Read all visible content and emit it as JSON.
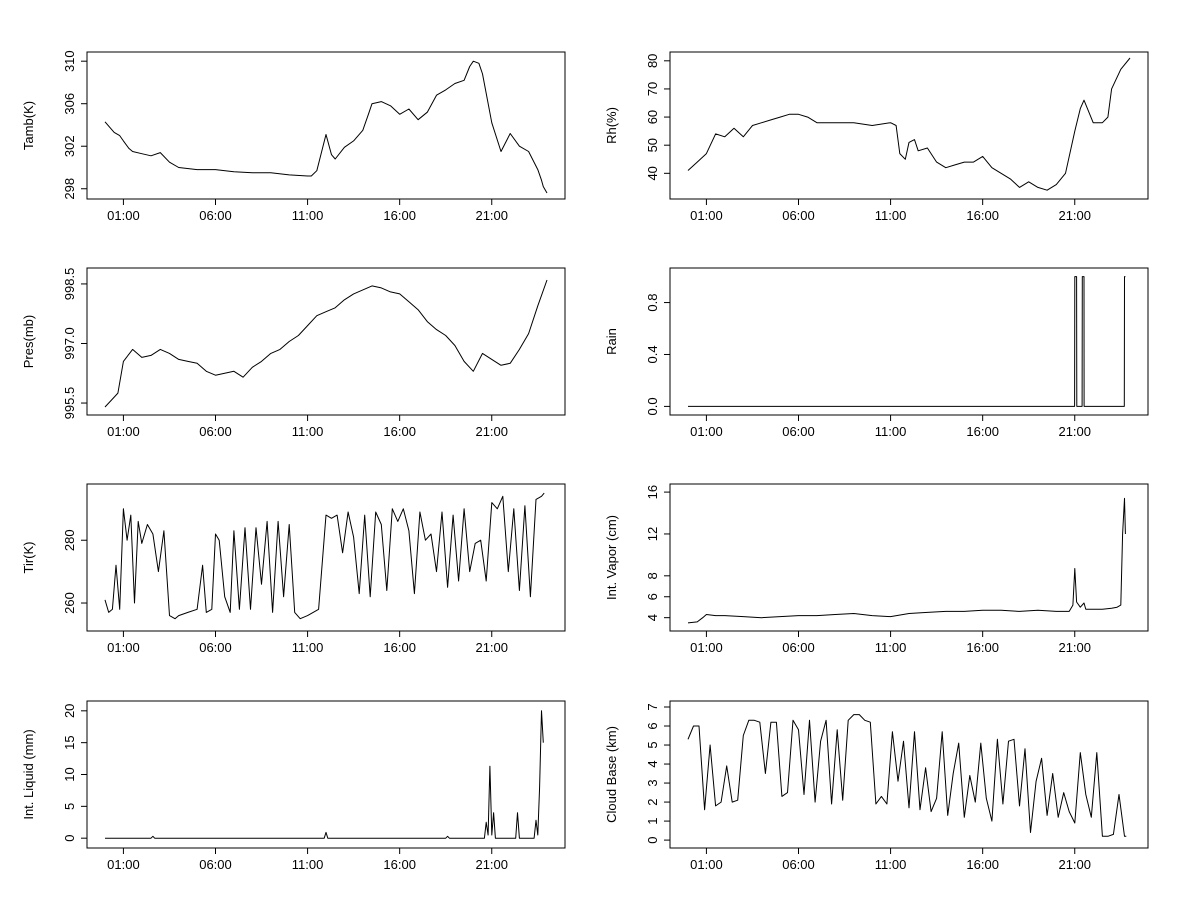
{
  "chart_data": [
    {
      "type": "line",
      "ylabel": "Tamb(K)",
      "xticks": [
        "01:00",
        "06:00",
        "11:00",
        "16:00",
        "21:00"
      ],
      "yticks": [
        298,
        302,
        306,
        310
      ],
      "ylim": [
        297.6,
        310.3
      ],
      "xlim": [
        0,
        24
      ],
      "grid": false,
      "series": [
        {
          "x": [
            0,
            0.3,
            0.5,
            0.8,
            1,
            1.3,
            1.5,
            2,
            2.5,
            3,
            3.5,
            4,
            5,
            6,
            7,
            8,
            9,
            10,
            11,
            11.2,
            11.5,
            12,
            12.3,
            12.5,
            13,
            13.5,
            14,
            14.3,
            14.5,
            15,
            15.5,
            16,
            16.5,
            17,
            17.5,
            18,
            18.5,
            19,
            19.5,
            19.8,
            20,
            20.3,
            20.5,
            21,
            21.5,
            22,
            22.5,
            23,
            23.5,
            23.7,
            23.8,
            24
          ],
          "y": [
            304.3,
            303.7,
            303.3,
            303.0,
            302.5,
            301.8,
            301.5,
            301.3,
            301.1,
            301.4,
            300.5,
            300.0,
            299.8,
            299.8,
            299.6,
            299.5,
            299.5,
            299.3,
            299.2,
            299.2,
            299.7,
            303.1,
            301.2,
            300.8,
            301.9,
            302.5,
            303.5,
            305.0,
            306.0,
            306.2,
            305.8,
            305.0,
            305.5,
            304.5,
            305.2,
            306.8,
            307.3,
            307.9,
            308.2,
            309.5,
            310.0,
            309.8,
            308.8,
            304.2,
            301.5,
            303.2,
            302.0,
            301.5,
            299.8,
            298.8,
            298.2,
            297.6
          ]
        }
      ]
    },
    {
      "type": "line",
      "ylabel": "Rh(%)",
      "xticks": [
        "01:00",
        "06:00",
        "11:00",
        "16:00",
        "21:00"
      ],
      "yticks": [
        40,
        50,
        60,
        70,
        80
      ],
      "ylim": [
        33,
        81
      ],
      "xlim": [
        0,
        24
      ],
      "grid": false,
      "series": [
        {
          "x": [
            0,
            0.5,
            1,
            1.5,
            2,
            2.5,
            3,
            3.5,
            4,
            4.5,
            5,
            5.5,
            6,
            6.5,
            7,
            8,
            9,
            10,
            11,
            11.3,
            11.5,
            11.8,
            12,
            12.3,
            12.5,
            13,
            13.5,
            14,
            14.5,
            15,
            15.5,
            16,
            16.5,
            17,
            17.5,
            18,
            18.5,
            19,
            19.5,
            20,
            20.5,
            21,
            21.3,
            21.5,
            22,
            22.5,
            22.8,
            23,
            23.5,
            24
          ],
          "y": [
            41,
            44,
            47,
            54,
            53,
            56,
            53,
            57,
            58,
            59,
            60,
            61,
            61,
            60,
            58,
            58,
            58,
            57,
            58,
            57,
            47,
            45,
            51,
            52,
            48,
            49,
            44,
            42,
            43,
            44,
            44,
            46,
            42,
            40,
            38,
            35,
            37,
            35,
            34,
            36,
            40,
            55,
            63,
            66,
            58,
            58,
            60,
            70,
            77,
            81
          ]
        }
      ]
    },
    {
      "type": "line",
      "ylabel": "Pres(mb)",
      "xticks": [
        "01:00",
        "06:00",
        "11:00",
        "16:00",
        "21:00"
      ],
      "yticks": [
        995.5,
        997.0,
        998.5
      ],
      "yticklabels": [
        "995.5",
        "997.0",
        "998.5"
      ],
      "ylim": [
        995.35,
        998.75
      ],
      "xlim": [
        0,
        24
      ],
      "grid": false,
      "series": [
        {
          "x": [
            0,
            0.3,
            0.7,
            1,
            1.5,
            2,
            2.5,
            3,
            3.5,
            4,
            4.5,
            5,
            5.5,
            6,
            6.5,
            7,
            7.5,
            8,
            8.5,
            9,
            9.5,
            10,
            10.5,
            11,
            11.5,
            12,
            12.5,
            13,
            13.5,
            14,
            14.5,
            15,
            15.5,
            16,
            16.5,
            17,
            17.5,
            18,
            18.5,
            19,
            19.5,
            20,
            20.5,
            21,
            21.5,
            22,
            22.5,
            23,
            23.5,
            24
          ],
          "y": [
            995.4,
            995.55,
            995.75,
            996.55,
            996.85,
            996.65,
            996.7,
            996.85,
            996.75,
            996.6,
            996.55,
            996.5,
            996.3,
            996.2,
            996.25,
            996.3,
            996.15,
            996.4,
            996.55,
            996.75,
            996.85,
            997.05,
            997.2,
            997.45,
            997.7,
            997.8,
            997.9,
            998.1,
            998.25,
            998.35,
            998.45,
            998.4,
            998.3,
            998.25,
            998.05,
            997.85,
            997.55,
            997.35,
            997.2,
            996.95,
            996.55,
            996.3,
            996.75,
            996.6,
            996.45,
            996.5,
            996.85,
            997.25,
            997.95,
            998.6
          ]
        }
      ]
    },
    {
      "type": "line",
      "ylabel": "Rain",
      "xticks": [
        "01:00",
        "06:00",
        "11:00",
        "16:00",
        "21:00"
      ],
      "yticks": [
        0.0,
        0.4,
        0.8
      ],
      "yticklabels": [
        "0.0",
        "0.4",
        "0.8"
      ],
      "ylim": [
        -0.02,
        1.02
      ],
      "xlim": [
        0,
        24
      ],
      "grid": false,
      "series": [
        {
          "x": [
            0,
            20.99,
            21,
            21.1,
            21.11,
            21.4,
            21.41,
            21.5,
            21.51,
            23.69,
            23.7,
            23.75
          ],
          "y": [
            0,
            0,
            1,
            1,
            0,
            0,
            1,
            1,
            0,
            0,
            1,
            1
          ]
        }
      ]
    },
    {
      "type": "line",
      "ylabel": "Int. Vapor (cm)",
      "xticks": [
        "01:00",
        "06:00",
        "11:00",
        "16:00",
        "21:00"
      ],
      "yticks": [
        4,
        6,
        8,
        12,
        16
      ],
      "ylim": [
        3.3,
        16.2
      ],
      "xlim": [
        0,
        24
      ],
      "grid": false,
      "series": [
        {
          "x": [
            0,
            0.5,
            0.8,
            1,
            1.5,
            2,
            3,
            4,
            5,
            6,
            7,
            8,
            9,
            10,
            11,
            12,
            13,
            14,
            15,
            16,
            17,
            18,
            19,
            20,
            20.7,
            20.9,
            21,
            21.1,
            21.3,
            21.5,
            21.6,
            22,
            22.5,
            23,
            23.3,
            23.5,
            23.6,
            23.7,
            23.75
          ],
          "y": [
            3.5,
            3.6,
            4.0,
            4.3,
            4.2,
            4.2,
            4.1,
            4.0,
            4.1,
            4.2,
            4.2,
            4.3,
            4.4,
            4.2,
            4.1,
            4.4,
            4.5,
            4.6,
            4.6,
            4.7,
            4.7,
            4.6,
            4.7,
            4.6,
            4.6,
            5.2,
            8.7,
            5.5,
            5.0,
            5.4,
            4.8,
            4.8,
            4.8,
            4.9,
            5.0,
            5.2,
            12.0,
            15.4,
            12.0
          ]
        }
      ]
    },
    {
      "type": "line",
      "ylabel": "Int. Liquid (mm)",
      "xticks": [
        "01:00",
        "06:00",
        "11:00",
        "16:00",
        "21:00"
      ],
      "yticks": [
        0,
        5,
        10,
        15,
        20
      ],
      "ylim": [
        -0.6,
        20.6
      ],
      "xlim": [
        0,
        24
      ],
      "grid": false,
      "series": [
        {
          "x": [
            0,
            2.5,
            2.6,
            2.7,
            11.9,
            12.0,
            12.1,
            18.5,
            18.6,
            18.7,
            20.6,
            20.7,
            20.8,
            20.9,
            21.0,
            21.1,
            21.2,
            22.3,
            22.4,
            22.5,
            23.3,
            23.4,
            23.5,
            23.6,
            23.7,
            23.8
          ],
          "y": [
            0,
            0,
            0.3,
            0,
            0,
            0.9,
            0,
            0,
            0.3,
            0,
            0,
            2.5,
            0.5,
            11.3,
            0.5,
            4.0,
            0,
            0,
            4.0,
            0,
            0,
            2.8,
            0.5,
            8.0,
            20.0,
            15.0
          ]
        }
      ]
    },
    {
      "type": "line",
      "ylabel": "Tir(K)",
      "xticks": [
        "01:00",
        "06:00",
        "11:00",
        "16:00",
        "21:00"
      ],
      "yticks": [
        260,
        280
      ],
      "ylim": [
        253,
        296
      ],
      "xlim": [
        0,
        24
      ],
      "grid": false,
      "series": [
        {
          "x": [
            0,
            0.2,
            0.4,
            0.6,
            0.8,
            1,
            1.2,
            1.4,
            1.6,
            1.8,
            2,
            2.3,
            2.6,
            2.9,
            3.2,
            3.5,
            3.8,
            4,
            4.5,
            5,
            5.3,
            5.5,
            5.8,
            6,
            6.2,
            6.5,
            6.8,
            7,
            7.3,
            7.6,
            7.9,
            8.2,
            8.5,
            8.8,
            9.1,
            9.4,
            9.7,
            10,
            10.3,
            10.6,
            11,
            11.3,
            11.6,
            12,
            12.3,
            12.6,
            12.9,
            13.2,
            13.5,
            13.8,
            14.1,
            14.4,
            14.7,
            15,
            15.3,
            15.6,
            15.9,
            16.2,
            16.5,
            16.8,
            17.1,
            17.4,
            17.7,
            18,
            18.3,
            18.6,
            18.9,
            19.2,
            19.5,
            19.8,
            20.1,
            20.4,
            20.7,
            21,
            21.3,
            21.6,
            21.9,
            22.2,
            22.5,
            22.8,
            23.1,
            23.4,
            23.7,
            23.85
          ],
          "y": [
            261,
            257,
            258,
            272,
            258,
            290,
            280,
            288,
            260,
            286,
            279,
            285,
            282,
            270,
            283,
            256,
            255,
            256,
            257,
            258,
            272,
            257,
            258,
            282,
            280,
            262,
            257,
            283,
            258,
            284,
            258,
            284,
            266,
            286,
            257,
            286,
            262,
            285,
            257,
            255,
            256,
            257,
            258,
            288,
            287,
            288,
            276,
            289,
            281,
            263,
            288,
            262,
            289,
            285,
            264,
            290,
            286,
            290,
            283,
            263,
            289,
            280,
            282,
            270,
            289,
            265,
            288,
            267,
            290,
            270,
            279,
            280,
            267,
            292,
            290,
            294,
            270,
            290,
            264,
            291,
            262,
            293,
            294,
            295
          ]
        }
      ]
    },
    {
      "type": "line",
      "ylabel": "Cloud Base (km)",
      "xticks": [
        "01:00",
        "06:00",
        "11:00",
        "16:00",
        "21:00"
      ],
      "yticks": [
        0,
        1,
        2,
        3,
        4,
        5,
        6,
        7
      ],
      "ylim": [
        -0.1,
        7.0
      ],
      "xlim": [
        0,
        24
      ],
      "grid": false,
      "series": [
        {
          "x": [
            0,
            0.3,
            0.6,
            0.9,
            1.2,
            1.5,
            1.8,
            2.1,
            2.4,
            2.7,
            3,
            3.3,
            3.6,
            3.9,
            4.2,
            4.5,
            4.8,
            5.1,
            5.4,
            5.7,
            6,
            6.3,
            6.6,
            6.9,
            7.2,
            7.5,
            7.8,
            8.1,
            8.4,
            8.7,
            9,
            9.3,
            9.6,
            9.9,
            10.2,
            10.5,
            10.8,
            11.1,
            11.4,
            11.7,
            12,
            12.3,
            12.6,
            12.9,
            13.2,
            13.5,
            13.8,
            14.1,
            14.4,
            14.7,
            15,
            15.3,
            15.6,
            15.9,
            16.2,
            16.5,
            16.8,
            17.1,
            17.4,
            17.7,
            18,
            18.3,
            18.6,
            18.9,
            19.2,
            19.5,
            19.8,
            20.1,
            20.4,
            20.7,
            21,
            21.3,
            21.6,
            21.9,
            22.2,
            22.5,
            22.8,
            23.1,
            23.4,
            23.7,
            23.8
          ],
          "y": [
            5.3,
            6.0,
            6.0,
            1.6,
            5.0,
            1.8,
            2.0,
            3.9,
            2.0,
            2.1,
            5.5,
            6.3,
            6.3,
            6.2,
            3.5,
            6.2,
            6.2,
            2.3,
            2.5,
            6.3,
            5.8,
            2.4,
            6.3,
            2.0,
            5.2,
            6.3,
            1.9,
            5.8,
            2.1,
            6.3,
            6.6,
            6.6,
            6.3,
            6.2,
            1.9,
            2.3,
            1.9,
            5.7,
            3.1,
            5.2,
            1.7,
            5.7,
            1.6,
            3.8,
            1.5,
            2.2,
            5.7,
            1.3,
            3.5,
            5.1,
            1.2,
            3.4,
            2.0,
            5.1,
            2.2,
            1.0,
            5.3,
            1.9,
            5.2,
            5.3,
            1.8,
            4.8,
            0.4,
            3.1,
            4.3,
            1.3,
            3.5,
            1.2,
            2.5,
            1.5,
            0.9,
            4.6,
            2.4,
            1.2,
            4.6,
            0.2,
            0.2,
            0.3,
            2.4,
            0.2,
            0.2
          ]
        }
      ]
    }
  ]
}
